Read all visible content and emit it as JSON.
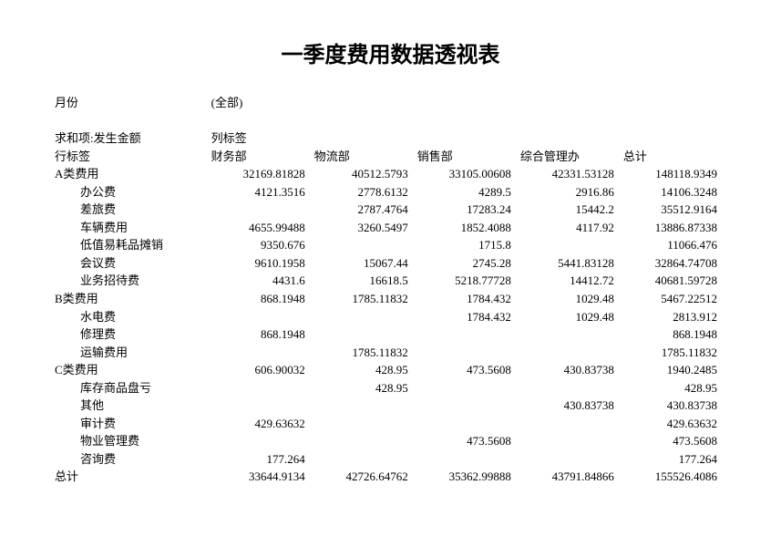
{
  "title": "一季度费用数据透视表",
  "filterLabel": "月份",
  "filterValue": "(全部)",
  "sumLabel": "求和项:发生金额",
  "colHeaderLabel": "列标签",
  "rowHeaderLabel": "行标签",
  "columns": [
    "财务部",
    "物流部",
    "销售部",
    "综合管理办",
    "总计"
  ],
  "rows": [
    {
      "label": "A类费用",
      "indent": 0,
      "v": [
        "32169.81828",
        "40512.5793",
        "33105.00608",
        "42331.53128",
        "148118.9349"
      ]
    },
    {
      "label": "办公费",
      "indent": 1,
      "v": [
        "4121.3516",
        "2778.6132",
        "4289.5",
        "2916.86",
        "14106.3248"
      ]
    },
    {
      "label": "差旅费",
      "indent": 1,
      "v": [
        "",
        "2787.4764",
        "17283.24",
        "15442.2",
        "35512.9164"
      ]
    },
    {
      "label": "车辆费用",
      "indent": 1,
      "v": [
        "4655.99488",
        "3260.5497",
        "1852.4088",
        "4117.92",
        "13886.87338"
      ]
    },
    {
      "label": "低值易耗品摊销",
      "indent": 1,
      "v": [
        "9350.676",
        "",
        "1715.8",
        "",
        "11066.476"
      ]
    },
    {
      "label": "会议费",
      "indent": 1,
      "v": [
        "9610.1958",
        "15067.44",
        "2745.28",
        "5441.83128",
        "32864.74708"
      ]
    },
    {
      "label": "业务招待费",
      "indent": 1,
      "v": [
        "4431.6",
        "16618.5",
        "5218.77728",
        "14412.72",
        "40681.59728"
      ]
    },
    {
      "label": "B类费用",
      "indent": 0,
      "v": [
        "868.1948",
        "1785.11832",
        "1784.432",
        "1029.48",
        "5467.22512"
      ]
    },
    {
      "label": "水电费",
      "indent": 1,
      "v": [
        "",
        "",
        "1784.432",
        "1029.48",
        "2813.912"
      ]
    },
    {
      "label": "修理费",
      "indent": 1,
      "v": [
        "868.1948",
        "",
        "",
        "",
        "868.1948"
      ]
    },
    {
      "label": "运输费用",
      "indent": 1,
      "v": [
        "",
        "1785.11832",
        "",
        "",
        "1785.11832"
      ]
    },
    {
      "label": "C类费用",
      "indent": 0,
      "v": [
        "606.90032",
        "428.95",
        "473.5608",
        "430.83738",
        "1940.2485"
      ]
    },
    {
      "label": "库存商品盘亏",
      "indent": 1,
      "v": [
        "",
        "428.95",
        "",
        "",
        "428.95"
      ]
    },
    {
      "label": "其他",
      "indent": 1,
      "v": [
        "",
        "",
        "",
        "430.83738",
        "430.83738"
      ]
    },
    {
      "label": "审计费",
      "indent": 1,
      "v": [
        "429.63632",
        "",
        "",
        "",
        "429.63632"
      ]
    },
    {
      "label": "物业管理费",
      "indent": 1,
      "v": [
        "",
        "",
        "473.5608",
        "",
        "473.5608"
      ]
    },
    {
      "label": "咨询费",
      "indent": 1,
      "v": [
        "177.264",
        "",
        "",
        "",
        "177.264"
      ]
    },
    {
      "label": "总计",
      "indent": 0,
      "v": [
        "33644.9134",
        "42726.64762",
        "35362.99888",
        "43791.84866",
        "155526.4086"
      ]
    }
  ]
}
